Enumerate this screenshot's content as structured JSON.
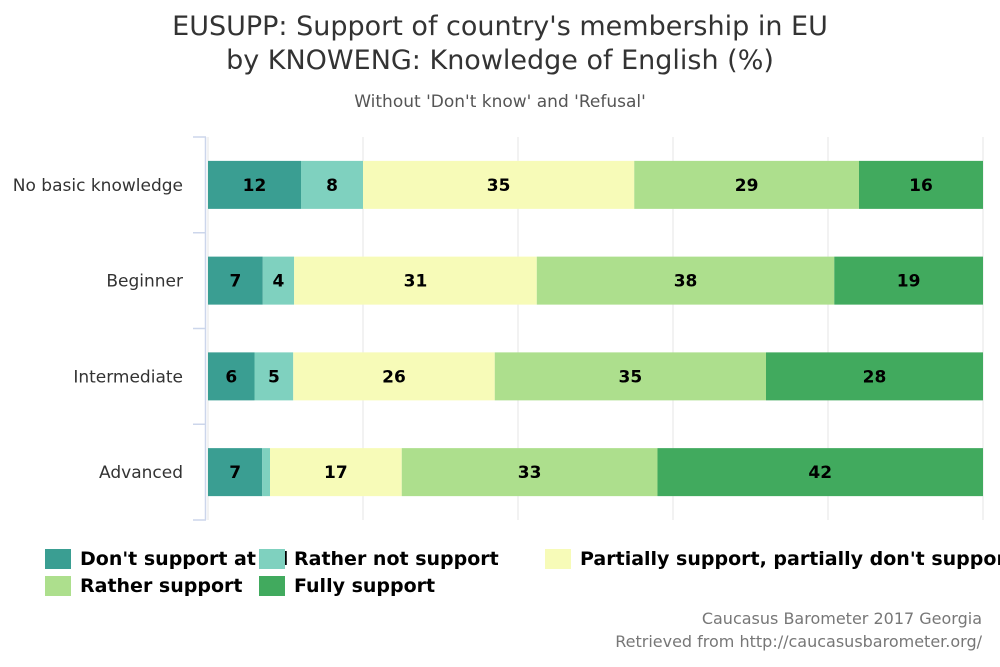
{
  "title_line1": "EUSUPP: Support of country's membership in EU",
  "title_line2": "by KNOWENG: Knowledge of English (%)",
  "subtitle": "Without 'Don't know' and 'Refusal'",
  "credits": {
    "line1": "Caucasus Barometer 2017 Georgia",
    "line2": "Retrieved from http://caucasusbarometer.org/"
  },
  "chart_data": {
    "type": "bar",
    "orientation": "horizontal",
    "stacking": "percent",
    "categories": [
      "No basic knowledge",
      "Beginner",
      "Intermediate",
      "Advanced"
    ],
    "series": [
      {
        "name": "Don't support at all",
        "color": "#3a9e92",
        "values": [
          12,
          7,
          6,
          7
        ],
        "labels": [
          "12",
          "7",
          "6",
          "7"
        ]
      },
      {
        "name": "Rather not support",
        "color": "#7fd1bf",
        "values": [
          8,
          4,
          5,
          1
        ],
        "labels": [
          "8",
          "4",
          "5",
          ""
        ]
      },
      {
        "name": "Partially support, partially don't support",
        "color": "#f7fbb8",
        "values": [
          35,
          31,
          26,
          17
        ],
        "labels": [
          "35",
          "31",
          "26",
          "17"
        ]
      },
      {
        "name": "Rather support",
        "color": "#addf8d",
        "values": [
          29,
          38,
          35,
          33
        ],
        "labels": [
          "29",
          "38",
          "35",
          "33"
        ]
      },
      {
        "name": "Fully support",
        "color": "#41aa5e",
        "values": [
          16,
          19,
          28,
          42
        ],
        "labels": [
          "16",
          "19",
          "28",
          "42"
        ]
      }
    ],
    "legend_position": "bottom",
    "grid": true
  }
}
